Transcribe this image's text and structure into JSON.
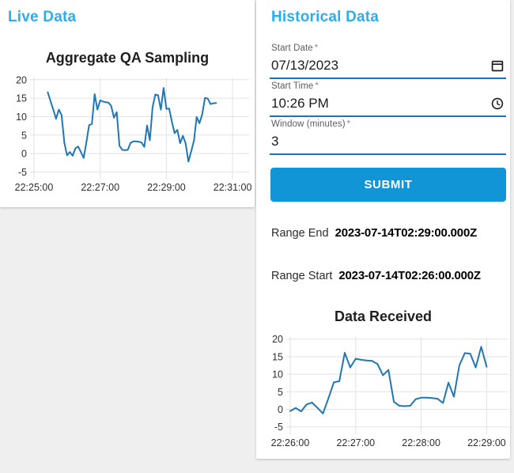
{
  "live_panel": {
    "heading": "Live Data"
  },
  "historical_panel": {
    "heading": "Historical Data",
    "fields": [
      {
        "label": "Start Date",
        "required_marker": "*",
        "value": "07/13/2023",
        "icon": "calendar-icon"
      },
      {
        "label": "Start Time",
        "required_marker": "*",
        "value": "10:26 PM",
        "icon": "clock-icon"
      },
      {
        "label": "Window (minutes)",
        "required_marker": "*",
        "value": "3",
        "icon": null
      }
    ],
    "submit_label": "SUBMIT",
    "results": [
      {
        "label": "Range End",
        "value": "2023-07-14T02:29:00.000Z"
      },
      {
        "label": "Range Start",
        "value": "2023-07-14T02:26:00.000Z"
      }
    ]
  },
  "colors": {
    "heading_accent": "#2badf2",
    "field_underline": "#1474c4",
    "submit_background": "#1295d6",
    "submit_text": "#ffffff",
    "chart_line": "#1f77b4",
    "grid_line": "#e2e2e2"
  },
  "chart_data": [
    {
      "type": "line",
      "title": "Aggregate QA Sampling",
      "x_axis": {
        "domain_seconds": [
          0,
          390
        ],
        "ticks": [
          {
            "s": 0,
            "label": "22:25:00"
          },
          {
            "s": 120,
            "label": "22:27:00"
          },
          {
            "s": 240,
            "label": "22:29:00"
          },
          {
            "s": 360,
            "label": "22:31:00"
          }
        ]
      },
      "y_axis": {
        "domain": [
          -6.2,
          20.6
        ],
        "ticks": [
          -5,
          0,
          5,
          10,
          15,
          20
        ]
      },
      "line_color": "#1f77b4",
      "points_s_v": [
        [
          25,
          16.6
        ],
        [
          30,
          14.2
        ],
        [
          35,
          11.9
        ],
        [
          40,
          9.4
        ],
        [
          45,
          11.9
        ],
        [
          50,
          10.4
        ],
        [
          55,
          2.9
        ],
        [
          60,
          -0.5
        ],
        [
          65,
          0.4
        ],
        [
          70,
          -0.6
        ],
        [
          75,
          1.4
        ],
        [
          80,
          1.9
        ],
        [
          85,
          0.4
        ],
        [
          90,
          -1.2
        ],
        [
          95,
          3.1
        ],
        [
          100,
          7.7
        ],
        [
          105,
          8.0
        ],
        [
          110,
          16.1
        ],
        [
          115,
          11.9
        ],
        [
          120,
          14.4
        ],
        [
          125,
          14.1
        ],
        [
          130,
          13.9
        ],
        [
          135,
          13.8
        ],
        [
          140,
          12.9
        ],
        [
          145,
          9.7
        ],
        [
          150,
          11.2
        ],
        [
          155,
          2.1
        ],
        [
          160,
          1.0
        ],
        [
          165,
          0.9
        ],
        [
          170,
          1.0
        ],
        [
          175,
          2.9
        ],
        [
          180,
          3.3
        ],
        [
          185,
          3.3
        ],
        [
          190,
          3.2
        ],
        [
          195,
          3.0
        ],
        [
          200,
          1.8
        ],
        [
          205,
          7.6
        ],
        [
          210,
          3.6
        ],
        [
          215,
          12.5
        ],
        [
          220,
          16.0
        ],
        [
          225,
          15.8
        ],
        [
          230,
          11.9
        ],
        [
          235,
          17.8
        ],
        [
          240,
          12.1
        ],
        [
          245,
          12.2
        ],
        [
          250,
          8.6
        ],
        [
          255,
          5.5
        ],
        [
          260,
          6.4
        ],
        [
          265,
          2.8
        ],
        [
          270,
          4.8
        ],
        [
          275,
          2.7
        ],
        [
          280,
          -2.2
        ],
        [
          285,
          0.6
        ],
        [
          290,
          3.5
        ],
        [
          295,
          9.9
        ],
        [
          300,
          8.2
        ],
        [
          305,
          10.6
        ],
        [
          310,
          15.1
        ],
        [
          315,
          14.9
        ],
        [
          320,
          13.4
        ],
        [
          325,
          13.6
        ],
        [
          330,
          13.7
        ]
      ]
    },
    {
      "type": "line",
      "title": "Data Received",
      "x_axis": {
        "domain_seconds": [
          0,
          200
        ],
        "ticks": [
          {
            "s": 0,
            "label": "22:26:00"
          },
          {
            "s": 60,
            "label": "22:27:00"
          },
          {
            "s": 120,
            "label": "22:28:00"
          },
          {
            "s": 180,
            "label": "22:29:00"
          }
        ]
      },
      "y_axis": {
        "domain": [
          -6.2,
          20.6
        ],
        "ticks": [
          -5,
          0,
          5,
          10,
          15,
          20
        ]
      },
      "line_color": "#1f77b4",
      "points_s_v": [
        [
          0,
          -0.5
        ],
        [
          5,
          0.4
        ],
        [
          10,
          -0.6
        ],
        [
          15,
          1.4
        ],
        [
          20,
          1.9
        ],
        [
          25,
          0.4
        ],
        [
          30,
          -1.2
        ],
        [
          35,
          3.1
        ],
        [
          40,
          7.7
        ],
        [
          45,
          8.0
        ],
        [
          50,
          16.1
        ],
        [
          55,
          11.9
        ],
        [
          60,
          14.4
        ],
        [
          65,
          14.1
        ],
        [
          70,
          13.9
        ],
        [
          75,
          13.8
        ],
        [
          80,
          12.9
        ],
        [
          85,
          9.7
        ],
        [
          90,
          11.2
        ],
        [
          95,
          2.1
        ],
        [
          100,
          1.0
        ],
        [
          105,
          0.9
        ],
        [
          110,
          1.0
        ],
        [
          115,
          2.9
        ],
        [
          120,
          3.3
        ],
        [
          125,
          3.3
        ],
        [
          130,
          3.2
        ],
        [
          135,
          3.0
        ],
        [
          140,
          1.8
        ],
        [
          145,
          7.6
        ],
        [
          150,
          3.6
        ],
        [
          155,
          12.5
        ],
        [
          160,
          16.0
        ],
        [
          165,
          15.8
        ],
        [
          170,
          11.9
        ],
        [
          175,
          17.8
        ],
        [
          180,
          12.1
        ]
      ]
    }
  ]
}
